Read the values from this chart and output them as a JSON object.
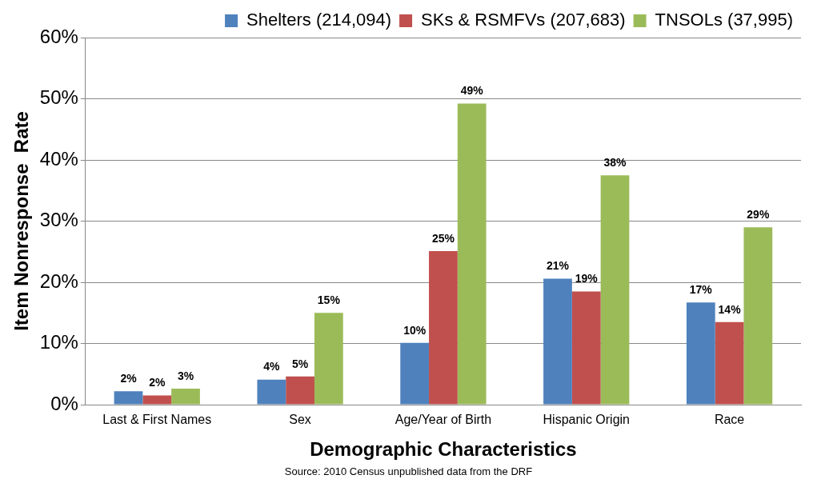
{
  "chart_data": {
    "type": "bar",
    "xlabel": "Demographic Characteristics",
    "ylabel": "Item Nonresponse  Rate",
    "categories": [
      "Last & First Names",
      "Sex",
      "Age/Year of Birth",
      "Hispanic Origin",
      "Race"
    ],
    "series": [
      {
        "name": "Shelters (214,094)",
        "color": "#4f81bd",
        "values": [
          2.2,
          4.1,
          10.1,
          20.6,
          16.7
        ],
        "value_labels": [
          "2%",
          "4%",
          "10%",
          "21%",
          "17%"
        ]
      },
      {
        "name": "SKs & RSMFVs (207,683)",
        "color": "#c0504d",
        "values": [
          1.5,
          4.6,
          25.1,
          18.5,
          13.5
        ],
        "value_labels": [
          "2%",
          "5%",
          "25%",
          "19%",
          "14%"
        ]
      },
      {
        "name": "TNSOLs (37,995)",
        "color": "#9bbb59",
        "values": [
          2.6,
          15.0,
          49.2,
          37.5,
          29.0
        ],
        "value_labels": [
          "3%",
          "15%",
          "49%",
          "38%",
          "29%"
        ]
      }
    ],
    "ylim": [
      0,
      60
    ],
    "yticks": [
      {
        "value": 0,
        "label": "0%"
      },
      {
        "value": 10,
        "label": "10%"
      },
      {
        "value": 20,
        "label": "20%"
      },
      {
        "value": 30,
        "label": "30%"
      },
      {
        "value": 40,
        "label": "40%"
      },
      {
        "value": 50,
        "label": "50%"
      },
      {
        "value": 60,
        "label": "60%"
      }
    ],
    "grid": "y",
    "legend": "top right",
    "annotations": [
      "Source: 2010 Census unpublished data from the DRF"
    ]
  }
}
